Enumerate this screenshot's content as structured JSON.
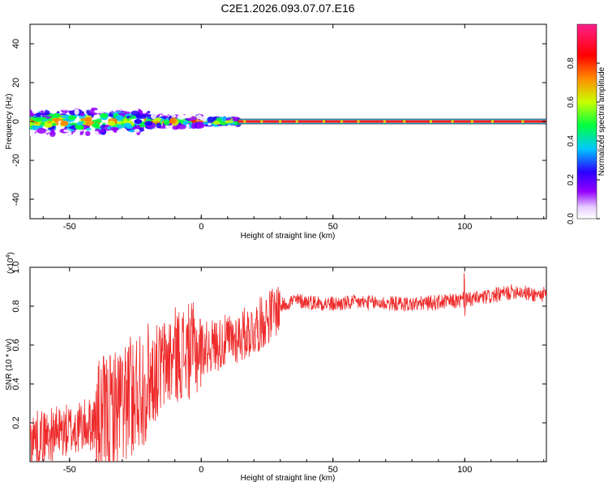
{
  "title": "C2E1.2026.093.07.07.E16",
  "chart_data": [
    {
      "type": "heatmap",
      "name": "spectrogram",
      "xlabel": "Height of straight line (km)",
      "ylabel": "Frequency (Hz)",
      "xlim": [
        -65,
        131
      ],
      "ylim": [
        -50,
        50
      ],
      "xticks": [
        -50,
        0,
        50,
        100
      ],
      "yticks": [
        -40,
        -20,
        0,
        20,
        40
      ],
      "xtick_labels": [
        "-50",
        "0",
        "50",
        "100"
      ],
      "ytick_labels": [
        "-40",
        "-20",
        "0",
        "20",
        "40"
      ],
      "description_points": [
        {
          "x": -62,
          "y": 1,
          "v": 0.5
        },
        {
          "x": -58,
          "y": -2,
          "v": 0.6
        },
        {
          "x": -55,
          "y": 3,
          "v": 0.45
        },
        {
          "x": -52,
          "y": -1,
          "v": 0.7
        },
        {
          "x": -49,
          "y": 2,
          "v": 0.5
        },
        {
          "x": -46,
          "y": -3,
          "v": 0.55
        },
        {
          "x": -43,
          "y": 1,
          "v": 0.75
        },
        {
          "x": -40,
          "y": -2,
          "v": 0.5
        },
        {
          "x": -37,
          "y": 3,
          "v": 0.45
        },
        {
          "x": -34,
          "y": -1,
          "v": 0.6
        },
        {
          "x": -31,
          "y": 2,
          "v": 0.4
        },
        {
          "x": -28,
          "y": -2,
          "v": 0.35
        },
        {
          "x": -24,
          "y": 0,
          "v": 0.3
        },
        {
          "x": -20,
          "y": -1,
          "v": 0.3
        }
      ],
      "colorbar": {
        "label": "Normalized spectral amplitude",
        "range": [
          0,
          1
        ],
        "ticks": [
          0.0,
          0.2,
          0.4,
          0.6,
          0.8
        ],
        "tick_labels": [
          "0.0",
          "0.2",
          "0.4",
          "0.6",
          "0.8"
        ],
        "colors": [
          "#ffffff",
          "#9400ff",
          "#2a00ff",
          "#00c8ff",
          "#00ff40",
          "#c8ff00",
          "#ff8c00",
          "#ff0000",
          "#ff1e8c"
        ]
      },
      "tone_line_start_km": 14,
      "tone_line_end_km": 131
    },
    {
      "type": "line",
      "name": "snr",
      "xlabel": "Height of straight line (km)",
      "ylabel": "SNR (10 * v/v)",
      "multiplier_label": "(x10",
      "multiplier_exp": "4",
      "multiplier_close": ")",
      "xlim": [
        -65,
        131
      ],
      "ylim": [
        0,
        1.0
      ],
      "xticks": [
        -50,
        0,
        50,
        100
      ],
      "yticks": [
        0.2,
        0.4,
        0.6,
        0.8,
        1.0
      ],
      "xtick_labels": [
        "-50",
        "0",
        "50",
        "100"
      ],
      "ytick_labels": [
        "0.2",
        "0.4",
        "0.6",
        "0.8",
        "1.0"
      ],
      "color": "#ee2a2a",
      "trend": {
        "x": [
          -65,
          -50,
          -40,
          -30,
          -20,
          -10,
          0,
          10,
          20,
          30,
          35,
          50,
          60,
          80,
          100,
          110,
          120,
          125,
          131
        ],
        "y": [
          0.12,
          0.16,
          0.2,
          0.3,
          0.42,
          0.55,
          0.58,
          0.62,
          0.68,
          0.8,
          0.83,
          0.81,
          0.82,
          0.81,
          0.83,
          0.85,
          0.88,
          0.86,
          0.86
        ]
      }
    }
  ]
}
